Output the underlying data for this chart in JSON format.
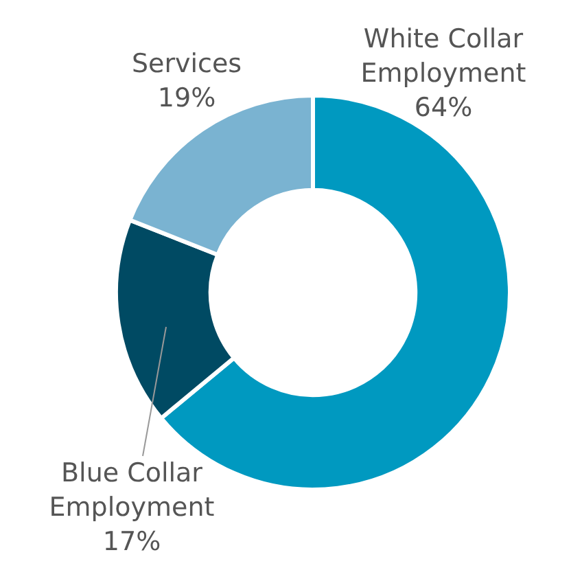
{
  "chart_data": {
    "type": "donut",
    "categories": [
      "White Collar Employment",
      "Blue Collar Employment",
      "Services"
    ],
    "values": [
      64,
      17,
      19
    ],
    "colors": [
      "#0099c0",
      "#004a63",
      "#7ab3d1"
    ],
    "value_labels": [
      "64%",
      "17%",
      "19%"
    ],
    "legend": false
  }
}
